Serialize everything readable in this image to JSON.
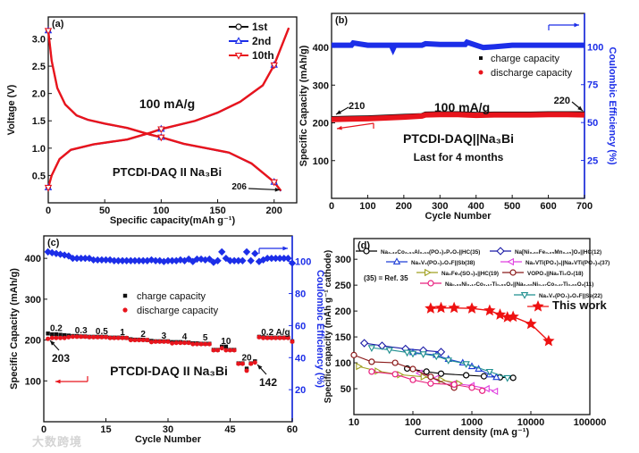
{
  "chart_data": [
    {
      "id": "a",
      "type": "line",
      "panel_label": "(a)",
      "xlabel": "Specific capacity(mAh g⁻¹)",
      "ylabel": "Voltage (V)",
      "xlim": [
        0,
        220
      ],
      "ylim": [
        0,
        3.4
      ],
      "xticks": [
        0,
        50,
        100,
        150,
        200
      ],
      "yticks": [
        0.5,
        1.0,
        1.5,
        2.0,
        2.5,
        3.0
      ],
      "ytick_labels": [
        "0.5",
        "1.0",
        "1.5",
        "2.0",
        "2.5",
        "3.0"
      ],
      "annotations": {
        "rate": "100 mA/g",
        "cell": "PTCDI-DAQ II Na₃Bi",
        "capacity": "206"
      },
      "legend": [
        "1st",
        "2nd",
        "10th"
      ],
      "legend_position": "top-right",
      "series": [
        {
          "name": "discharge",
          "x": [
            0,
            3,
            8,
            15,
            25,
            35,
            50,
            70,
            90,
            100,
            120,
            140,
            160,
            180,
            200,
            206
          ],
          "y": [
            3.15,
            2.6,
            2.1,
            1.8,
            1.6,
            1.52,
            1.45,
            1.37,
            1.25,
            1.2,
            1.08,
            1.0,
            0.92,
            0.72,
            0.38,
            0.22
          ]
        },
        {
          "name": "charge",
          "x": [
            0,
            3,
            10,
            20,
            40,
            70,
            90,
            100,
            130,
            150,
            170,
            180,
            190,
            200,
            213
          ],
          "y": [
            0.28,
            0.5,
            0.8,
            0.97,
            1.07,
            1.16,
            1.28,
            1.35,
            1.5,
            1.65,
            1.85,
            2.0,
            2.15,
            2.52,
            3.2
          ]
        }
      ],
      "markers": {
        "x": [
          0,
          100,
          200
        ]
      }
    },
    {
      "id": "b",
      "type": "scatter",
      "panel_label": "(b)",
      "xlabel": "Cycle Number",
      "ylabel": "Specific Capacity (mAh/g)",
      "y2label": "Coulombic Efficiency (%)",
      "xlim": [
        0,
        700
      ],
      "ylim": [
        0,
        490
      ],
      "y2lim": [
        0,
        122
      ],
      "xticks": [
        0,
        100,
        200,
        300,
        400,
        500,
        600,
        700
      ],
      "yticks": [
        100,
        200,
        300,
        400
      ],
      "y2ticks": [
        25,
        50,
        75,
        100
      ],
      "legend": [
        "charge capacity",
        "discharge capacity"
      ],
      "legend_position": "upper-right",
      "annotations": {
        "rate": "100 mA/g",
        "cell": "PTCDI-DAQ||Na₃Bi",
        "duration": "Last for 4 months",
        "start": "210",
        "end": "220"
      },
      "capacity": {
        "x": [
          0,
          50,
          100,
          150,
          200,
          250,
          260,
          300,
          350,
          400,
          450,
          500,
          550,
          600,
          650,
          700
        ],
        "charge": [
          212,
          213,
          214,
          216,
          218,
          220,
          224,
          225,
          225,
          223,
          224,
          224,
          224,
          225,
          225,
          225
        ],
        "discharge": [
          209,
          210,
          211,
          213,
          215,
          218,
          221,
          222,
          222,
          220,
          221,
          221,
          221,
          222,
          222,
          221
        ]
      },
      "efficiency": {
        "x": [
          0,
          55,
          60,
          100,
          165,
          170,
          175,
          250,
          260,
          300,
          370,
          375,
          400,
          420,
          450,
          500,
          600,
          700
        ],
        "y": [
          101,
          101,
          102.5,
          101,
          101,
          98.5,
          101,
          101,
          102,
          101.5,
          101.5,
          103,
          101,
          99.5,
          100,
          101,
          101,
          101
        ]
      }
    },
    {
      "id": "c",
      "type": "scatter",
      "panel_label": "(c)",
      "xlabel": "Cycle Number",
      "ylabel": "Specific Capacity (mAh/g)",
      "y2label": "Coulombic Efficiency (%)",
      "xlim": [
        0,
        60
      ],
      "ylim": [
        0,
        455
      ],
      "y2lim": [
        0,
        116
      ],
      "xticks": [
        0,
        15,
        30,
        45,
        60
      ],
      "yticks": [
        100,
        200,
        300,
        400
      ],
      "y2ticks": [
        20,
        40,
        60,
        80,
        100
      ],
      "legend": [
        "charge capacity",
        "discharge capacity"
      ],
      "legend_position": "center",
      "annotations": {
        "cell": "PTCDI-DAQ II Na₃Bi",
        "first": "203",
        "low": "142"
      },
      "rate_labels": [
        {
          "text": "0.2",
          "cycle": 3
        },
        {
          "text": "0.3",
          "cycle": 9
        },
        {
          "text": "0.5",
          "cycle": 14
        },
        {
          "text": "1",
          "cycle": 19
        },
        {
          "text": "2",
          "cycle": 24
        },
        {
          "text": "3",
          "cycle": 29
        },
        {
          "text": "4",
          "cycle": 34
        },
        {
          "text": "5",
          "cycle": 39
        },
        {
          "text": "10",
          "cycle": 44
        },
        {
          "text": "20",
          "cycle": 49
        },
        {
          "text": "0.2 A/g",
          "cycle": 56
        }
      ],
      "cycles": [
        1,
        2,
        3,
        4,
        5,
        6,
        7,
        8,
        9,
        10,
        11,
        12,
        13,
        14,
        15,
        16,
        17,
        18,
        19,
        20,
        21,
        22,
        23,
        24,
        25,
        26,
        27,
        28,
        29,
        30,
        31,
        32,
        33,
        34,
        35,
        36,
        37,
        38,
        39,
        40,
        41,
        42,
        43,
        44,
        45,
        46,
        47,
        48,
        49,
        50,
        51,
        52,
        53,
        54,
        55,
        56,
        57,
        58,
        59,
        60
      ],
      "charge": [
        216,
        214,
        214,
        213,
        212,
        211,
        210,
        210,
        209,
        209,
        208,
        208,
        208,
        208,
        208,
        206,
        206,
        206,
        206,
        205,
        202,
        201,
        201,
        201,
        200,
        198,
        197,
        197,
        197,
        197,
        195,
        195,
        195,
        194,
        194,
        192,
        192,
        191,
        191,
        191,
        176,
        176,
        184,
        184,
        176,
        176,
        143,
        143,
        130,
        143,
        148,
        208,
        207,
        206,
        206,
        206,
        206,
        206,
        206,
        197
      ],
      "discharge": [
        203,
        205,
        205,
        205,
        205,
        207,
        208,
        208,
        208,
        208,
        207,
        207,
        207,
        207,
        207,
        205,
        205,
        205,
        205,
        205,
        200,
        200,
        200,
        200,
        200,
        195,
        196,
        196,
        196,
        196,
        192,
        193,
        193,
        193,
        193,
        190,
        190,
        190,
        190,
        190,
        175,
        175,
        180,
        175,
        175,
        175,
        142,
        142,
        125,
        142,
        145,
        207,
        205,
        205,
        205,
        205,
        205,
        205,
        205,
        196
      ],
      "efficiency": [
        106,
        105.5,
        105,
        104.5,
        104,
        103.5,
        102,
        102,
        102,
        102,
        102,
        101,
        101,
        101,
        101,
        101,
        100.5,
        100.5,
        100.5,
        100.5,
        100.5,
        100.5,
        100.5,
        100.5,
        100.5,
        101,
        100.5,
        100.5,
        100,
        100.5,
        100.5,
        100.5,
        101,
        100.5,
        101.5,
        100,
        101.5,
        101.5,
        101,
        101.5,
        99.5,
        100.5,
        106,
        102,
        100.5,
        100.5,
        100.5,
        100.5,
        106,
        100.5,
        105,
        100,
        101,
        102,
        102,
        102,
        102,
        102,
        102,
        99
      ]
    },
    {
      "id": "d",
      "type": "line",
      "panel_label": "(d)",
      "xlabel": "Current density (mA g⁻¹)",
      "ylabel": "Specific capacity (mAh g⁻¹ cathode)",
      "xscale": "log",
      "xlim": [
        10,
        100000
      ],
      "ylim": [
        0,
        340
      ],
      "xticks": [
        10,
        100,
        1000,
        10000,
        100000
      ],
      "yticks": [
        50,
        100,
        150,
        200,
        250,
        300
      ],
      "note": "(35) = Ref. 35",
      "series": [
        {
          "name": "Na₃.₃₂Co₂.₃₄Al₀.₃₃(PO₄)₂P₂O₇||HC(35)",
          "color": "#000000",
          "marker": "circle",
          "x": [
            80,
            170,
            300,
            800,
            1600,
            3000,
            5000
          ],
          "y": [
            89,
            83,
            79,
            76,
            74,
            72,
            71
          ]
        },
        {
          "name": "Na[Ni₀.₆₀Fe₀.₂₅Mn₀.₁₅]O₂||HC(12)",
          "color": "#1a1aa6",
          "marker": "diamond",
          "x": [
            15,
            30,
            75,
            150,
            300
          ],
          "y": [
            138,
            133,
            127,
            124,
            121
          ]
        },
        {
          "name": "Na₃V₂(PO₄)₂O₂F||Sb(38)",
          "color": "#1f3fd6",
          "marker": "triangle-up",
          "x": [
            100,
            250,
            400,
            700,
            1000,
            1300,
            2000,
            2600
          ],
          "y": [
            120,
            115,
            107,
            100,
            93,
            88,
            77,
            72
          ]
        },
        {
          "name": "Na₂VTi(PO₄)₃||Na₂VTi(PO₄)₃(37)",
          "color": "#e040e0",
          "marker": "triangle-left",
          "x": [
            130,
            250,
            500,
            1000,
            1800,
            2500
          ],
          "y": [
            80,
            70,
            60,
            56,
            50,
            45
          ]
        },
        {
          "name": "Na₂Fe₂(SO₄)₃||HC(19)",
          "color": "#a0a020",
          "marker": "triangle-right",
          "x": [
            12,
            25,
            60,
            150,
            300,
            600
          ],
          "y": [
            93,
            84,
            77,
            73,
            67,
            60
          ]
        },
        {
          "name": "VOPO₄||Na₂Ti₃O₇(18)",
          "color": "#8b1a1a",
          "marker": "circle",
          "x": [
            10,
            20,
            50,
            100,
            200,
            500
          ],
          "y": [
            115,
            102,
            100,
            88,
            73,
            52
          ]
        },
        {
          "name": "Na₀.₆₆Ni₀.₁₇Co₀.₁₇Ti₀.₆₆O₂||Na₀.₆₆Ni₀.₁₇Co₀.₁₇Ti₀.₆₆O₂(11)",
          "color": "#e8207f",
          "marker": "circle",
          "x": [
            20,
            50,
            100,
            200,
            500,
            1000,
            1500
          ],
          "y": [
            83,
            78,
            67,
            60,
            58,
            52,
            46
          ]
        },
        {
          "name": "Na₃V₂(PO₄)₂O₂F||Se(22)",
          "color": "#1f8f8f",
          "marker": "triangle-down",
          "x": [
            20,
            40,
            80,
            100,
            150,
            250,
            400,
            800,
            2000,
            4000
          ],
          "y": [
            129,
            125,
            120,
            118,
            117,
            113,
            105,
            98,
            83,
            71
          ]
        },
        {
          "name": "This work",
          "color": "#ee1111",
          "marker": "star",
          "x": [
            200,
            300,
            500,
            1000,
            2000,
            3000,
            4000,
            5000,
            10000,
            20000
          ],
          "y": [
            205,
            206,
            206,
            205,
            201,
            193,
            188,
            189,
            175,
            142
          ]
        }
      ]
    }
  ],
  "colors": {
    "black": "#000000",
    "red": "#e8141c",
    "blue": "#1c2ee8"
  },
  "watermark": "大数跨境"
}
